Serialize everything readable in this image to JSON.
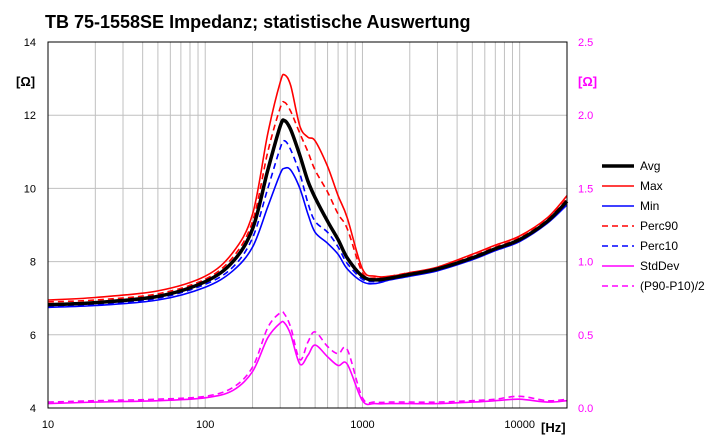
{
  "chart_data": {
    "type": "line",
    "title": "TB 75-1558SE Impedanz; statistische Auswertung",
    "x_unit": "[Hz]",
    "y_unit": "[Ω]",
    "y2_unit": "[Ω]",
    "x_scale": "log",
    "xlim": [
      10,
      20000
    ],
    "ylim": [
      4,
      14
    ],
    "y2lim": [
      0,
      2.5
    ],
    "grid": true,
    "legend_position": "right",
    "x_tick_labels": [
      "10",
      "100",
      "1000",
      "10000"
    ],
    "y_tick_labels": [
      "4",
      "6",
      "8",
      "10",
      "12",
      "14"
    ],
    "y2_tick_labels": [
      "0.0",
      "0.5",
      "1.0",
      "1.5",
      "2.0",
      "2.5"
    ],
    "x": [
      10,
      20,
      50,
      100,
      150,
      200,
      250,
      300,
      320,
      350,
      400,
      450,
      500,
      600,
      700,
      800,
      1000,
      1200,
      1500,
      2000,
      3000,
      5000,
      7000,
      10000,
      15000,
      20000
    ],
    "series": [
      {
        "name": "Avg",
        "axis": "left",
        "color": "#000000",
        "dash": "solid",
        "width": 3.5,
        "values": [
          6.82,
          6.88,
          7.05,
          7.45,
          8.0,
          8.9,
          10.5,
          11.7,
          11.85,
          11.6,
          10.9,
          10.2,
          9.75,
          9.1,
          8.6,
          8.1,
          7.6,
          7.5,
          7.55,
          7.65,
          7.8,
          8.1,
          8.35,
          8.6,
          9.1,
          9.65
        ]
      },
      {
        "name": "Max",
        "axis": "left",
        "color": "#ff0000",
        "dash": "solid",
        "width": 1.6,
        "values": [
          6.95,
          7.02,
          7.2,
          7.6,
          8.25,
          9.3,
          11.5,
          12.9,
          13.1,
          12.8,
          11.7,
          11.4,
          11.3,
          10.6,
          9.8,
          9.2,
          7.8,
          7.6,
          7.6,
          7.7,
          7.85,
          8.2,
          8.45,
          8.7,
          9.2,
          9.8
        ]
      },
      {
        "name": "Min",
        "axis": "left",
        "color": "#0000ff",
        "dash": "solid",
        "width": 1.6,
        "values": [
          6.75,
          6.8,
          6.95,
          7.3,
          7.75,
          8.4,
          9.5,
          10.4,
          10.55,
          10.5,
          10.0,
          9.3,
          8.8,
          8.5,
          8.2,
          7.8,
          7.45,
          7.4,
          7.5,
          7.6,
          7.75,
          8.05,
          8.3,
          8.55,
          9.05,
          9.55
        ]
      },
      {
        "name": "Perc90",
        "axis": "left",
        "color": "#ff0000",
        "dash": "dashed",
        "width": 1.6,
        "values": [
          6.9,
          6.95,
          7.12,
          7.52,
          8.12,
          9.1,
          11.0,
          12.2,
          12.35,
          12.1,
          11.5,
          11.0,
          10.5,
          9.9,
          9.3,
          8.9,
          7.7,
          7.55,
          7.6,
          7.7,
          7.82,
          8.15,
          8.4,
          8.65,
          9.15,
          9.72
        ]
      },
      {
        "name": "Perc10",
        "axis": "left",
        "color": "#0000ff",
        "dash": "dashed",
        "width": 1.6,
        "values": [
          6.78,
          6.83,
          7.0,
          7.38,
          7.85,
          8.65,
          10.0,
          11.1,
          11.3,
          11.05,
          10.4,
          9.6,
          9.1,
          8.8,
          8.4,
          7.95,
          7.52,
          7.45,
          7.52,
          7.62,
          7.77,
          8.08,
          8.32,
          8.58,
          9.08,
          9.6
        ]
      },
      {
        "name": "StdDev",
        "axis": "right",
        "color": "#ff00ff",
        "dash": "solid",
        "width": 1.6,
        "values": [
          0.03,
          0.04,
          0.05,
          0.07,
          0.12,
          0.25,
          0.48,
          0.58,
          0.58,
          0.5,
          0.3,
          0.36,
          0.43,
          0.35,
          0.29,
          0.3,
          0.05,
          0.03,
          0.03,
          0.03,
          0.03,
          0.04,
          0.05,
          0.06,
          0.04,
          0.05
        ]
      },
      {
        "name": "(P90-P10)/2",
        "axis": "right",
        "color": "#ff00ff",
        "dash": "dashed",
        "width": 1.6,
        "values": [
          0.04,
          0.05,
          0.06,
          0.08,
          0.14,
          0.28,
          0.55,
          0.65,
          0.64,
          0.55,
          0.33,
          0.45,
          0.52,
          0.42,
          0.37,
          0.4,
          0.07,
          0.04,
          0.04,
          0.04,
          0.04,
          0.05,
          0.06,
          0.08,
          0.05,
          0.06
        ]
      }
    ]
  }
}
